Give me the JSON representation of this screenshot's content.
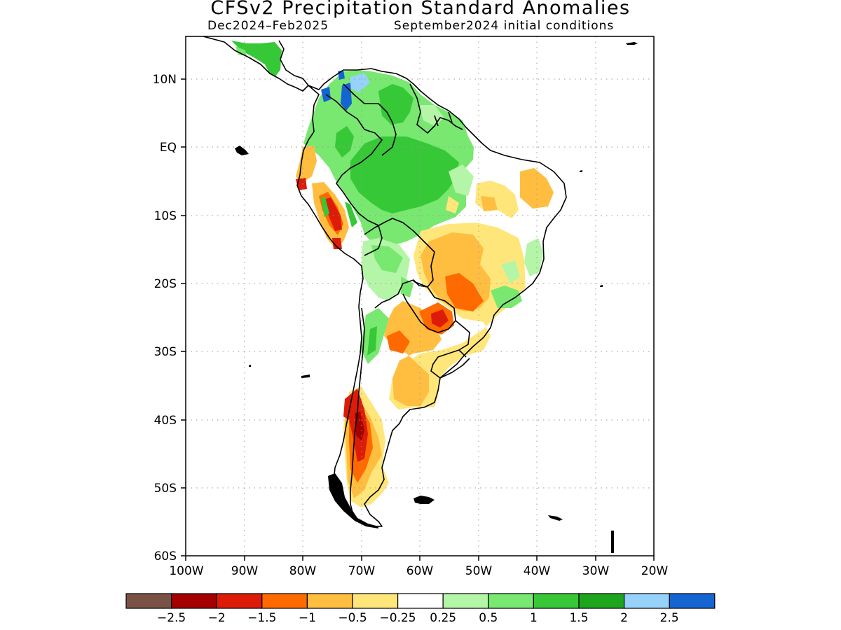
{
  "title": "CFSv2 Precipitation Standard Anomalies",
  "subtitle_period": "Dec2024–Feb2025",
  "subtitle_init": "September2024 initial conditions",
  "axes": {
    "lon_ticks": [
      "100W",
      "90W",
      "80W",
      "70W",
      "60W",
      "50W",
      "40W",
      "30W",
      "20W"
    ],
    "lat_ticks": [
      "10N",
      "EQ",
      "10S",
      "20S",
      "30S",
      "40S",
      "50S",
      "60S"
    ]
  },
  "colorbar": {
    "colors": [
      "#7a5245",
      "#a50000",
      "#dc1c08",
      "#ff6a00",
      "#ffbe40",
      "#ffe67a",
      "#ffffff",
      "#b4f5a8",
      "#78e870",
      "#37c837",
      "#1ea51e",
      "#96d2fa",
      "#1464d2"
    ],
    "labels": [
      "−2.5",
      "−2",
      "−1.5",
      "−1",
      "−0.5",
      "−0.25",
      "0.25",
      "0.5",
      "1",
      "1.5",
      "2",
      "2.5"
    ]
  },
  "map": {
    "projection": "latitude-longitude",
    "lon_range": [
      -100,
      -20
    ],
    "lat_range": [
      -60,
      16
    ],
    "gridlines": "dotted",
    "region": "South America"
  }
}
